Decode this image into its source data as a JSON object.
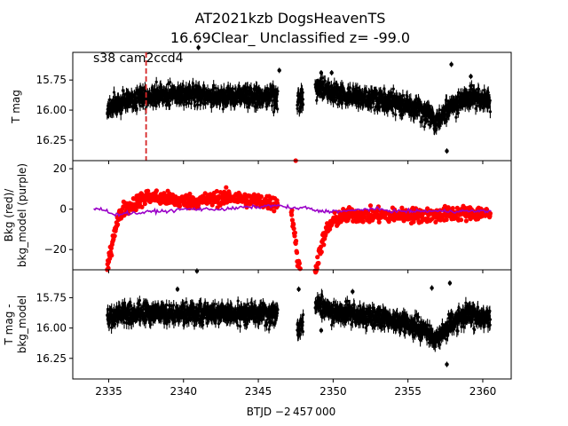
{
  "chart_data": {
    "type": "scatter",
    "title_line1": "AT2021kzb  DogsHeavenTS",
    "title_line2": "16.69Clear_ Unclassified z= -99.0",
    "xlabel": "BTJD −2 457 000",
    "xlim": [
      2332.6,
      2361.9
    ],
    "x_ticks": [
      2335,
      2340,
      2345,
      2350,
      2355,
      2360
    ],
    "x_tick_labels": [
      "2335",
      "2340",
      "2345",
      "2350",
      "2355",
      "2360"
    ],
    "panels": [
      {
        "id": "top",
        "ylabel": "T mag",
        "ylim": [
          15.52,
          16.42
        ],
        "inverted": true,
        "y_ticks": [
          15.75,
          16.0,
          16.25
        ],
        "y_tick_labels": [
          "15.75",
          "16.00",
          "16.25"
        ],
        "annotation": "s38 cam2ccd4",
        "marker_line_x": 2337.5,
        "series": [
          {
            "name": "",
            "color": "#000000",
            "segments": [
              {
                "x": [
                  2334.9,
                  2335.5,
                  2336.5,
                  2337.5,
                  2338.5,
                  2339.5,
                  2340.5,
                  2341.5,
                  2342.5,
                  2343.5,
                  2344.5,
                  2345.5,
                  2346.3
                ],
                "y": [
                  15.99,
                  15.95,
                  15.91,
                  15.89,
                  15.88,
                  15.87,
                  15.87,
                  15.87,
                  15.88,
                  15.89,
                  15.88,
                  15.89,
                  15.9
                ]
              },
              {
                "x": [
                  2347.6,
                  2348.0
                ],
                "y": [
                  15.92,
                  15.93
                ]
              },
              {
                "x": [
                  2348.8,
                  2349.5,
                  2350.5,
                  2351.5,
                  2352.5,
                  2353.5,
                  2354.5,
                  2355.5,
                  2356.3,
                  2356.8,
                  2357.3,
                  2357.8,
                  2358.3,
                  2358.8,
                  2359.5,
                  2360.5
                ],
                "y": [
                  15.8,
                  15.84,
                  15.87,
                  15.89,
                  15.91,
                  15.92,
                  15.95,
                  15.99,
                  16.03,
                  16.1,
                  16.06,
                  15.97,
                  15.93,
                  15.89,
                  15.9,
                  15.92
                ]
              }
            ],
            "outliers": [
              [
                2341.0,
                15.48
              ],
              [
                2349.2,
                15.69
              ],
              [
                2357.6,
                16.34
              ],
              [
                2357.9,
                15.62
              ],
              [
                2349.9,
                15.69
              ],
              [
                2346.4,
                15.67
              ],
              [
                2359.2,
                15.72
              ]
            ]
          }
        ]
      },
      {
        "id": "middle",
        "ylabel_lines": [
          "Bkg (red)/",
          "bkg_model (purple)"
        ],
        "ylim": [
          -30,
          24
        ],
        "inverted": false,
        "y_ticks": [
          -20,
          0,
          20
        ],
        "y_tick_labels": [
          "−20",
          "0",
          "20"
        ],
        "series": [
          {
            "name": "Bkg",
            "color": "#ff0000",
            "segments": [
              {
                "x": [
                  2334.9,
                  2335.0,
                  2335.2,
                  2335.4,
                  2335.7,
                  2336.0,
                  2336.5,
                  2337.0,
                  2337.5,
                  2338.0,
                  2339.0,
                  2340.0,
                  2341.0,
                  2342.0,
                  2343.0,
                  2344.0,
                  2345.0,
                  2346.0,
                  2346.3
                ],
                "y": [
                  -29,
                  -26,
                  -18,
                  -10,
                  -4,
                  0,
                  2,
                  4,
                  6,
                  6,
                  5,
                  4,
                  4,
                  5,
                  6,
                  5,
                  4,
                  3,
                  3
                ]
              },
              {
                "x": [
                  2347.2,
                  2347.4,
                  2347.6,
                  2347.8
                ],
                "y": [
                  -1,
                  -10,
                  -25,
                  -30
                ]
              },
              {
                "x": [
                  2348.8,
                  2349.0,
                  2349.3,
                  2349.6,
                  2350.0,
                  2350.5,
                  2351.0,
                  2352.0,
                  2353.0,
                  2354.0,
                  2355.0,
                  2356.0,
                  2357.0,
                  2358.0,
                  2359.0,
                  2360.0,
                  2360.5
                ],
                "y": [
                  -30,
                  -24,
                  -16,
                  -10,
                  -6,
                  -4,
                  -3,
                  -3,
                  -3,
                  -3,
                  -3,
                  -3,
                  -3,
                  -2,
                  -2,
                  -2,
                  -3
                ]
              }
            ],
            "outliers": [
              [
                2347.5,
                24
              ]
            ]
          },
          {
            "name": "bkg_model",
            "color": "#9a00c8",
            "segments": [
              {
                "x": [
                  2334.0,
                  2334.5,
                  2335.0,
                  2335.4,
                  2336.0,
                  2337.0,
                  2338.0,
                  2339.0,
                  2340.0,
                  2341.0,
                  2342.0,
                  2343.0,
                  2344.0,
                  2345.0,
                  2346.0,
                  2347.0,
                  2347.5,
                  2348.0,
                  2348.5,
                  2349.0,
                  2350.0,
                  2351.0,
                  2352.0,
                  2353.0,
                  2354.0,
                  2355.0,
                  2356.0,
                  2357.0,
                  2358.0,
                  2359.0,
                  2360.0,
                  2360.6
                ],
                "y": [
                  0,
                  0,
                  -1,
                  -3,
                  -2,
                  -2,
                  -1,
                  -1,
                  0,
                  0,
                  0,
                  0,
                  1,
                  1,
                  2,
                  1,
                  0,
                  1,
                  0,
                  -1,
                  -1,
                  -1,
                  0,
                  0,
                  -1,
                  -1,
                  -1,
                  -1,
                  -1,
                  -1,
                  -1,
                  -1
                ]
              }
            ],
            "outliers": []
          }
        ]
      },
      {
        "id": "bottom",
        "ylabel_lines": [
          "T mag -",
          "bkg_model"
        ],
        "ylim": [
          15.52,
          16.42
        ],
        "inverted": true,
        "y_ticks": [
          15.75,
          16.0,
          16.25
        ],
        "y_tick_labels": [
          "15.75",
          "16.00",
          "16.25"
        ],
        "series": [
          {
            "name": "",
            "color": "#000000",
            "segments": [
              {
                "x": [
                  2334.9,
                  2335.5,
                  2336.5,
                  2337.5,
                  2338.5,
                  2339.5,
                  2340.5,
                  2341.5,
                  2342.5,
                  2343.5,
                  2344.5,
                  2345.5,
                  2346.3
                ],
                "y": [
                  15.92,
                  15.9,
                  15.88,
                  15.88,
                  15.88,
                  15.88,
                  15.88,
                  15.88,
                  15.88,
                  15.89,
                  15.88,
                  15.89,
                  15.9
                ]
              },
              {
                "x": [
                  2347.6,
                  2348.0
                ],
                "y": [
                  16.0,
                  15.97
                ]
              },
              {
                "x": [
                  2348.8,
                  2349.5,
                  2350.5,
                  2351.5,
                  2352.5,
                  2353.5,
                  2354.5,
                  2355.5,
                  2356.3,
                  2356.8,
                  2357.3,
                  2357.8,
                  2358.3,
                  2358.8,
                  2359.5,
                  2360.5
                ],
                "y": [
                  15.8,
                  15.84,
                  15.87,
                  15.89,
                  15.91,
                  15.92,
                  15.95,
                  15.99,
                  16.03,
                  16.1,
                  16.06,
                  15.97,
                  15.93,
                  15.89,
                  15.9,
                  15.92
                ]
              }
            ],
            "outliers": [
              [
                2340.9,
                15.53
              ],
              [
                2339.6,
                15.68
              ],
              [
                2347.7,
                15.68
              ],
              [
                2349.2,
                16.02
              ],
              [
                2357.6,
                16.3
              ],
              [
                2357.8,
                15.63
              ],
              [
                2351.3,
                15.7
              ],
              [
                2356.6,
                15.67
              ]
            ]
          }
        ]
      }
    ],
    "colors": {
      "light_curve": "#000000",
      "background": "#ff0000",
      "background_model": "#9a00c8",
      "marker_line": "#d62728"
    }
  }
}
